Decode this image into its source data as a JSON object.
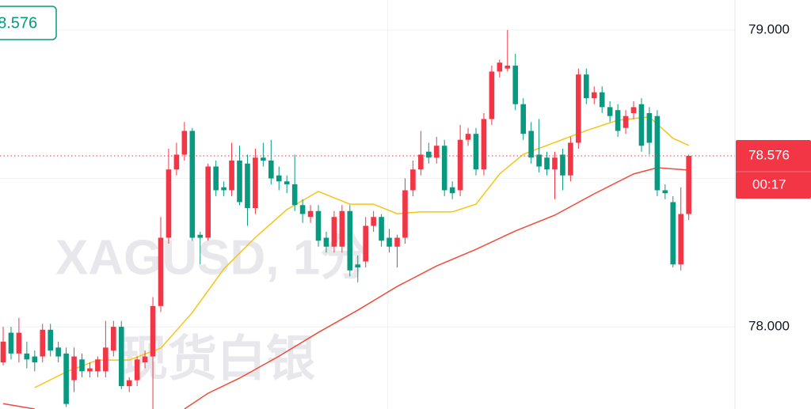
{
  "chart_data": {
    "type": "candlestick",
    "watermark": "XAGUSD, 1分",
    "watermark_sub": "现货白银",
    "ylim": [
      77.723,
      79.101
    ],
    "yticks": [
      {
        "value": 78.0,
        "label": "78.000"
      },
      {
        "value": 79.0,
        "label": "79.000"
      }
    ],
    "grid_y": [
      78.5
    ],
    "grid_x": [
      48.8
    ],
    "up_color": "#f23645",
    "down_color": "#089981",
    "current_price": {
      "value": 78.576,
      "label": "78.576"
    },
    "countdown": "00:17",
    "candles": {
      "open": [
        77.88,
        77.98,
        77.91,
        77.91,
        77.9,
        77.9,
        77.99,
        77.93,
        77.91,
        77.82,
        77.89,
        77.85,
        77.85,
        77.85,
        77.92,
        78.0,
        77.8,
        77.82,
        77.88,
        77.9,
        78.07,
        78.3,
        78.53,
        78.58,
        78.66,
        78.31,
        78.3,
        78.54,
        78.47,
        78.46,
        78.56,
        78.55,
        78.4,
        78.57,
        78.56,
        78.51,
        78.49,
        78.48,
        78.41,
        78.37,
        78.39,
        78.3,
        78.27,
        78.27,
        78.39,
        78.21,
        78.22,
        78.34,
        78.37,
        78.3,
        78.27,
        78.3,
        78.46,
        78.53,
        78.59,
        78.57,
        78.61,
        78.47,
        78.46,
        78.63,
        78.65,
        78.53,
        78.7,
        78.86,
        78.87,
        78.88,
        78.75,
        78.66,
        78.58,
        78.57,
        78.53,
        78.58,
        78.51,
        78.62,
        78.85,
        78.77,
        78.79,
        78.74,
        78.73,
        78.67,
        78.72,
        78.75,
        78.72,
        78.71,
        78.46,
        78.42,
        78.21,
        78.38
      ],
      "high": [
        78.0,
        78.0,
        78.03,
        77.95,
        77.92,
        78.01,
        78.01,
        77.95,
        77.93,
        77.93,
        77.91,
        77.88,
        77.9,
        78.02,
        78.02,
        78.02,
        77.83,
        77.9,
        77.92,
        78.1,
        78.37,
        78.6,
        78.62,
        78.69,
        78.67,
        78.32,
        78.55,
        78.56,
        78.49,
        78.62,
        78.61,
        78.58,
        78.6,
        78.62,
        78.63,
        78.54,
        78.51,
        78.58,
        78.43,
        78.41,
        78.41,
        78.32,
        78.39,
        78.41,
        78.41,
        78.24,
        78.37,
        78.39,
        78.38,
        78.33,
        78.31,
        78.5,
        78.56,
        78.66,
        78.62,
        78.64,
        78.63,
        78.49,
        78.68,
        78.67,
        78.67,
        78.72,
        78.88,
        78.9,
        79.0,
        78.92,
        78.77,
        78.69,
        78.7,
        78.59,
        78.59,
        78.6,
        78.64,
        78.87,
        78.87,
        78.81,
        78.81,
        78.76,
        78.75,
        78.73,
        78.76,
        78.77,
        78.74,
        78.73,
        78.48,
        78.44,
        78.47,
        78.58
      ],
      "low": [
        77.87,
        77.89,
        77.88,
        77.86,
        77.85,
        77.88,
        77.9,
        77.88,
        77.73,
        77.78,
        77.83,
        77.83,
        77.83,
        77.83,
        77.9,
        77.79,
        77.78,
        77.8,
        77.86,
        77.72,
        78.05,
        78.28,
        78.51,
        78.56,
        78.29,
        78.21,
        78.29,
        78.44,
        78.44,
        78.44,
        78.41,
        78.34,
        78.38,
        78.54,
        78.48,
        78.46,
        78.45,
        78.39,
        78.35,
        78.35,
        78.27,
        78.25,
        78.25,
        78.25,
        78.17,
        78.15,
        78.2,
        78.32,
        78.27,
        78.25,
        78.2,
        78.28,
        78.44,
        78.51,
        78.55,
        78.55,
        78.44,
        78.43,
        78.44,
        78.61,
        78.51,
        78.51,
        78.68,
        78.84,
        78.86,
        78.73,
        78.63,
        78.55,
        78.52,
        78.51,
        78.43,
        78.46,
        78.49,
        78.6,
        78.75,
        78.75,
        78.72,
        78.69,
        78.64,
        78.65,
        78.7,
        78.59,
        78.58,
        78.44,
        78.43,
        78.2,
        78.19,
        78.36
      ],
      "close": [
        77.95,
        77.91,
        77.98,
        77.89,
        77.88,
        77.99,
        77.92,
        77.9,
        77.74,
        77.9,
        77.85,
        77.86,
        77.89,
        77.93,
        78.0,
        77.8,
        77.82,
        77.89,
        77.9,
        78.07,
        78.3,
        78.53,
        78.58,
        78.66,
        78.3,
        78.3,
        78.54,
        78.46,
        78.46,
        78.56,
        78.42,
        78.4,
        78.57,
        78.56,
        78.5,
        78.49,
        78.48,
        78.41,
        78.38,
        78.39,
        78.29,
        78.27,
        78.37,
        78.39,
        78.19,
        78.2,
        78.34,
        78.37,
        78.29,
        78.27,
        78.3,
        78.46,
        78.53,
        78.58,
        78.57,
        78.61,
        78.46,
        78.45,
        78.63,
        78.65,
        78.53,
        78.7,
        78.86,
        78.89,
        78.88,
        78.75,
        78.65,
        78.57,
        78.54,
        78.53,
        78.57,
        78.51,
        78.62,
        78.85,
        78.77,
        78.79,
        78.74,
        78.71,
        78.66,
        78.71,
        78.74,
        78.61,
        78.62,
        78.46,
        78.45,
        78.21,
        78.38,
        78.576
      ]
    },
    "lines": [
      {
        "color": "#f5c518",
        "x": [
          4,
          8,
          12,
          16,
          20,
          24,
          28,
          32,
          36,
          40,
          44,
          47,
          50,
          53,
          57,
          60,
          63,
          66,
          70,
          74,
          78,
          82,
          85,
          87
        ],
        "values": [
          77.795,
          77.848,
          77.888,
          77.888,
          77.928,
          78.048,
          78.195,
          78.301,
          78.395,
          78.456,
          78.413,
          78.413,
          78.381,
          78.387,
          78.387,
          78.413,
          78.515,
          78.581,
          78.621,
          78.661,
          78.696,
          78.707,
          78.635,
          78.611
        ]
      },
      {
        "color": "#f04a3a",
        "x": [
          0,
          4,
          14,
          23,
          26,
          30,
          35,
          40,
          45,
          50,
          55,
          60,
          65,
          70,
          75,
          80,
          83,
          87
        ],
        "values": [
          77.741,
          77.723,
          null,
          77.723,
          77.776,
          77.827,
          77.901,
          77.981,
          78.056,
          78.136,
          78.205,
          78.261,
          78.323,
          78.376,
          78.448,
          78.515,
          78.536,
          78.528
        ]
      }
    ]
  }
}
